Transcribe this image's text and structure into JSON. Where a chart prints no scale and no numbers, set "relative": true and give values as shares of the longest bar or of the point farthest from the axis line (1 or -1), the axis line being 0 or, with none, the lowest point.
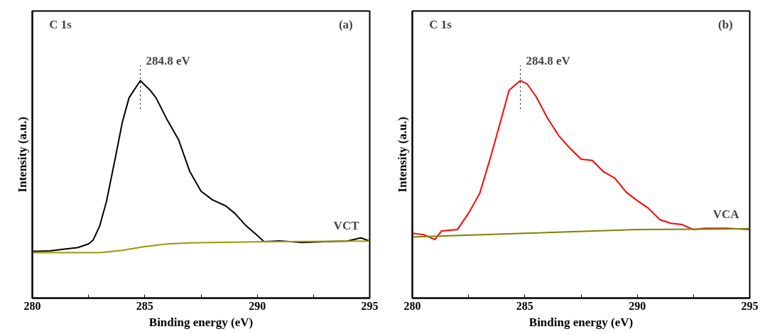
{
  "chart_data": [
    {
      "type": "line",
      "relative": true,
      "xlabel": "Binding energy (eV)",
      "ylabel": "Intensity (a.u.)",
      "xlim": [
        280,
        295
      ],
      "xticks": [
        280,
        {
          "value": 282.5,
          "label": null
        },
        285,
        {
          "value": 287.5,
          "label": null
        },
        290,
        {
          "value": 292.5,
          "label": null
        },
        295
      ],
      "grid": false,
      "annotations": [
        "C 1s",
        "(a)",
        {
          "text": "284.8 eV",
          "x": 284.8,
          "y": 1.0
        }
      ],
      "series": [
        {
          "name": "VCT",
          "color": "#000000",
          "x": [
            280,
            280.8,
            281.5,
            282,
            282.5,
            282.7,
            283,
            283.3,
            283.7,
            284,
            284.3,
            284.8,
            285.2,
            285.5,
            286,
            286.5,
            287,
            287.5,
            288,
            288.6,
            289,
            289.5,
            290,
            290.3,
            291,
            292,
            293,
            294,
            294.6,
            295
          ],
          "values": [
            0.215,
            0.217,
            0.226,
            0.232,
            0.249,
            0.266,
            0.333,
            0.446,
            0.65,
            0.808,
            0.921,
            1.0,
            0.96,
            0.921,
            0.819,
            0.729,
            0.582,
            0.492,
            0.452,
            0.424,
            0.39,
            0.333,
            0.288,
            0.26,
            0.263,
            0.256,
            0.26,
            0.262,
            0.277,
            0.262
          ]
        },
        {
          "color": "#999900",
          "x": [
            280,
            283,
            284,
            285,
            286,
            287,
            288,
            290,
            295
          ],
          "values": [
            0.209,
            0.209,
            0.22,
            0.237,
            0.249,
            0.254,
            0.256,
            0.259,
            0.262
          ]
        }
      ]
    },
    {
      "type": "line",
      "relative": true,
      "xlabel": "Binding energy (eV)",
      "ylabel": "Intensity (a.u.)",
      "xlim": [
        280,
        295
      ],
      "xticks": [
        280,
        {
          "value": 282.5,
          "label": null
        },
        285,
        {
          "value": 287.5,
          "label": null
        },
        290,
        {
          "value": 292.5,
          "label": null
        },
        295
      ],
      "grid": false,
      "annotations": [
        "C 1s",
        "(b)",
        {
          "text": "284.8 eV",
          "x": 284.8,
          "y": 1.0
        }
      ],
      "series": [
        {
          "name": "VCA",
          "color": "#ff0000",
          "x": [
            280,
            280.5,
            281,
            281.3,
            282,
            282.5,
            283,
            283.5,
            284,
            284.3,
            284.8,
            285.1,
            285.5,
            286,
            286.5,
            287,
            287.5,
            288,
            288.5,
            289,
            289.5,
            290,
            290.5,
            291,
            291.5,
            292,
            292.5,
            293,
            294,
            295
          ],
          "values": [
            0.298,
            0.292,
            0.269,
            0.309,
            0.315,
            0.39,
            0.483,
            0.656,
            0.841,
            0.956,
            1.0,
            0.985,
            0.927,
            0.829,
            0.748,
            0.69,
            0.639,
            0.633,
            0.581,
            0.552,
            0.488,
            0.448,
            0.413,
            0.361,
            0.344,
            0.338,
            0.315,
            0.321,
            0.321,
            0.315
          ]
        },
        {
          "color": "#808000",
          "x": [
            280,
            285,
            290,
            295
          ],
          "values": [
            0.281,
            0.298,
            0.315,
            0.319
          ]
        }
      ]
    }
  ]
}
